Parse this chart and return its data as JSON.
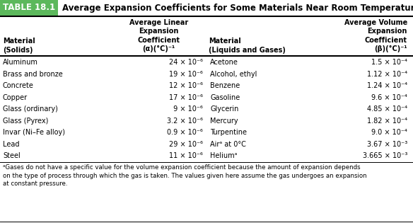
{
  "title_label": "TABLE 18.1",
  "title_text": "  Average Expansion Coefficients for Some Materials Near Room Temperature",
  "title_bg": "#5cb85c",
  "col_headers_left": [
    "Material\n(Solids)",
    "Average Linear\nExpansion\nCoefficient\n(α)(°C)⁻¹"
  ],
  "col_headers_right": [
    "Material\n(Liquids and Gases)",
    "Average Volume\nExpansion\nCoefficient\n(β)(°C)⁻¹"
  ],
  "solids": [
    [
      "Aluminum",
      "24 × 10⁻⁶"
    ],
    [
      "Brass and bronze",
      "19 × 10⁻⁶"
    ],
    [
      "Concrete",
      "12 × 10⁻⁶"
    ],
    [
      "Copper",
      "17 × 10⁻⁶"
    ],
    [
      "Glass (ordinary)",
      " 9 × 10⁻⁶"
    ],
    [
      "Glass (Pyrex)",
      "3.2 × 10⁻⁶"
    ],
    [
      "Invar (Ni–Fe alloy)",
      "0.9 × 10⁻⁶"
    ],
    [
      "Lead",
      "29 × 10⁻⁶"
    ],
    [
      "Steel",
      "11 × 10⁻⁶"
    ]
  ],
  "liquids": [
    [
      "Acetone",
      "1.5 × 10⁻⁴"
    ],
    [
      "Alcohol, ethyl",
      "1.12 × 10⁻⁴"
    ],
    [
      "Benzene",
      "1.24 × 10⁻⁴"
    ],
    [
      "Gasoline",
      "9.6 × 10⁻⁴"
    ],
    [
      "Glycerin",
      "4.85 × 10⁻⁴"
    ],
    [
      "Mercury",
      "1.82 × 10⁻⁴"
    ],
    [
      "Turpentine",
      "9.0 × 10⁻⁴"
    ],
    [
      "Airᵃ at 0°C",
      "3.67 × 10⁻³"
    ],
    [
      "Heliumᵃ",
      "3.665 × 10⁻³"
    ]
  ],
  "footnote": "ᵃGases do not have a specific value for the volume expansion coefficient because the amount of expansion depends\non the type of process through which the gas is taken. The values given here assume the gas undergoes an expansion\nat constant pressure.",
  "font_size": 7.0,
  "header_font_size": 7.0,
  "title_font_size": 8.5
}
